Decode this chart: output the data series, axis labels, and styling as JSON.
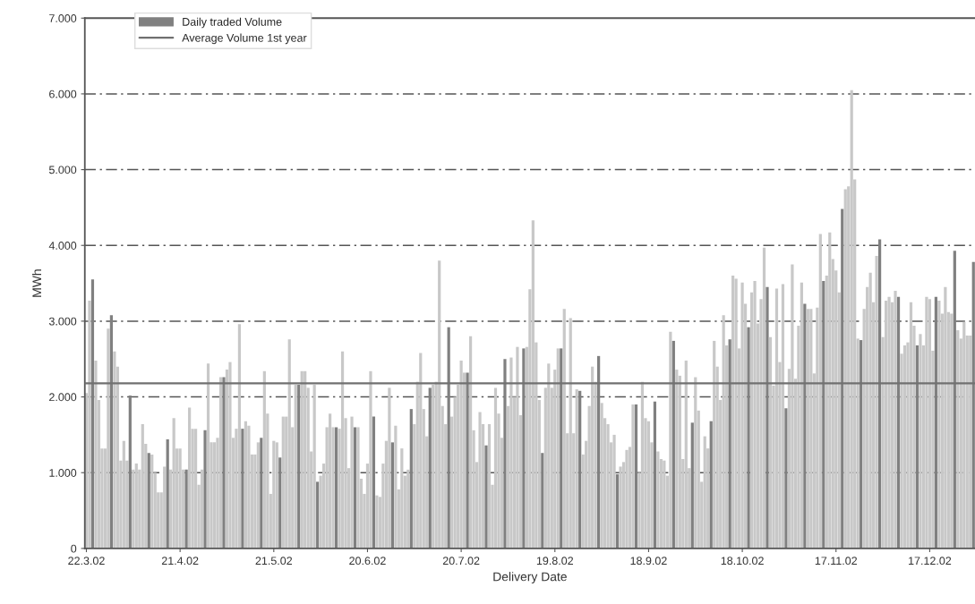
{
  "chart_data": {
    "type": "bar",
    "xlabel": "Delivery Date",
    "ylabel": "MWh",
    "categories": [
      "22.3.02",
      null,
      null,
      null,
      null,
      null,
      null,
      null,
      null,
      null,
      null,
      null,
      null,
      null,
      null,
      null,
      null,
      null,
      null,
      null,
      null,
      null,
      null,
      null,
      null,
      null,
      null,
      null,
      null,
      null,
      "21.4.02",
      null,
      null,
      null,
      null,
      null,
      null,
      null,
      null,
      null,
      null,
      null,
      null,
      null,
      null,
      null,
      null,
      null,
      null,
      null,
      null,
      null,
      null,
      null,
      null,
      null,
      null,
      null,
      null,
      null,
      "21.5.02",
      null,
      null,
      null,
      null,
      null,
      null,
      null,
      null,
      null,
      null,
      null,
      null,
      null,
      null,
      null,
      null,
      null,
      null,
      null,
      null,
      null,
      null,
      null,
      null,
      null,
      null,
      null,
      null,
      null,
      "20.6.02",
      null,
      null,
      null,
      null,
      null,
      null,
      null,
      null,
      null,
      null,
      null,
      null,
      null,
      null,
      null,
      null,
      null,
      null,
      null,
      null,
      null,
      null,
      null,
      null,
      null,
      null,
      null,
      null,
      null,
      "20.7.02",
      null,
      null,
      null,
      null,
      null,
      null,
      null,
      null,
      null,
      null,
      null,
      null,
      null,
      null,
      null,
      null,
      null,
      null,
      null,
      null,
      null,
      null,
      null,
      null,
      null,
      null,
      null,
      null,
      null,
      "19.8.02",
      null,
      null,
      null,
      null,
      null,
      null,
      null,
      null,
      null,
      null,
      null,
      null,
      null,
      null,
      null,
      null,
      null,
      null,
      null,
      null,
      null,
      null,
      null,
      null,
      null,
      null,
      null,
      null,
      null,
      "18.9.02",
      null,
      null,
      null,
      null,
      null,
      null,
      null,
      null,
      null,
      null,
      null,
      null,
      null,
      null,
      null,
      null,
      null,
      null,
      null,
      null,
      null,
      null,
      null,
      null,
      null,
      null,
      null,
      null,
      null,
      "18.10.02",
      null,
      null,
      null,
      null,
      null,
      null,
      null,
      null,
      null,
      null,
      null,
      null,
      null,
      null,
      null,
      null,
      null,
      null,
      null,
      null,
      null,
      null,
      null,
      null,
      null,
      null,
      null,
      null,
      null,
      "17.11.02",
      null,
      null,
      null,
      null,
      null,
      null,
      null,
      null,
      null,
      null,
      null,
      null,
      null,
      null,
      null,
      null,
      null,
      null,
      null,
      null,
      null,
      null,
      null,
      null,
      null,
      null,
      null,
      null,
      null,
      "17.12.02",
      null,
      null,
      null,
      null,
      null,
      null,
      null,
      null,
      null,
      null,
      null,
      null,
      null,
      null
    ],
    "series": [
      {
        "name": "Daily traded Volume",
        "color": "#808080",
        "colors": [
          "#c8c8c8",
          "#c8c8c8",
          "#808080",
          "#c8c8c8",
          "#c8c8c8",
          "#c8c8c8",
          "#c8c8c8",
          "#c8c8c8",
          "#808080",
          "#c8c8c8",
          "#c8c8c8",
          "#c8c8c8",
          "#c8c8c8",
          "#c8c8c8",
          "#808080",
          "#c8c8c8",
          "#c8c8c8",
          "#c8c8c8",
          "#c8c8c8",
          "#c8c8c8",
          "#808080",
          "#c8c8c8",
          "#c8c8c8",
          "#c8c8c8",
          "#c8c8c8",
          "#c8c8c8",
          "#808080",
          "#c8c8c8",
          "#c8c8c8",
          "#c8c8c8",
          "#c8c8c8",
          "#c8c8c8",
          "#808080",
          "#c8c8c8",
          "#c8c8c8",
          "#c8c8c8",
          "#c8c8c8",
          "#c8c8c8",
          "#808080",
          "#c8c8c8",
          "#c8c8c8",
          "#c8c8c8",
          "#c8c8c8",
          "#c8c8c8",
          "#808080",
          "#c8c8c8",
          "#c8c8c8",
          "#c8c8c8",
          "#c8c8c8",
          "#c8c8c8",
          "#808080",
          "#c8c8c8",
          "#c8c8c8",
          "#c8c8c8",
          "#c8c8c8",
          "#c8c8c8",
          "#808080",
          "#c8c8c8",
          "#c8c8c8",
          "#c8c8c8",
          "#c8c8c8",
          "#c8c8c8",
          "#808080",
          "#c8c8c8",
          "#c8c8c8",
          "#c8c8c8",
          "#c8c8c8",
          "#c8c8c8",
          "#808080",
          "#c8c8c8",
          "#c8c8c8",
          "#c8c8c8",
          "#c8c8c8",
          "#c8c8c8",
          "#808080",
          "#c8c8c8",
          "#c8c8c8",
          "#c8c8c8",
          "#c8c8c8",
          "#c8c8c8",
          "#808080",
          "#c8c8c8",
          "#c8c8c8",
          "#c8c8c8",
          "#c8c8c8",
          "#c8c8c8",
          "#808080",
          "#c8c8c8",
          "#c8c8c8",
          "#c8c8c8",
          "#c8c8c8",
          "#c8c8c8",
          "#808080",
          "#c8c8c8",
          "#c8c8c8",
          "#c8c8c8",
          "#c8c8c8",
          "#c8c8c8",
          "#808080",
          "#c8c8c8",
          "#c8c8c8",
          "#c8c8c8",
          "#c8c8c8",
          "#c8c8c8",
          "#808080",
          "#c8c8c8",
          "#c8c8c8",
          "#c8c8c8",
          "#c8c8c8",
          "#c8c8c8",
          "#808080",
          "#c8c8c8",
          "#c8c8c8",
          "#c8c8c8",
          "#c8c8c8",
          "#c8c8c8",
          "#808080",
          "#c8c8c8",
          "#c8c8c8",
          "#c8c8c8",
          "#c8c8c8",
          "#c8c8c8",
          "#808080",
          "#c8c8c8",
          "#c8c8c8",
          "#c8c8c8",
          "#c8c8c8",
          "#c8c8c8",
          "#808080",
          "#c8c8c8",
          "#c8c8c8",
          "#c8c8c8",
          "#c8c8c8",
          "#c8c8c8",
          "#808080",
          "#c8c8c8",
          "#c8c8c8",
          "#c8c8c8",
          "#c8c8c8",
          "#c8c8c8",
          "#808080",
          "#c8c8c8",
          "#c8c8c8",
          "#c8c8c8",
          "#c8c8c8",
          "#c8c8c8",
          "#808080",
          "#c8c8c8",
          "#c8c8c8",
          "#c8c8c8",
          "#c8c8c8",
          "#c8c8c8",
          "#808080",
          "#c8c8c8",
          "#c8c8c8",
          "#c8c8c8",
          "#c8c8c8",
          "#c8c8c8",
          "#808080",
          "#c8c8c8",
          "#c8c8c8",
          "#c8c8c8",
          "#c8c8c8",
          "#c8c8c8",
          "#808080",
          "#c8c8c8",
          "#c8c8c8",
          "#c8c8c8",
          "#c8c8c8",
          "#c8c8c8",
          "#808080",
          "#c8c8c8",
          "#c8c8c8",
          "#c8c8c8",
          "#c8c8c8",
          "#c8c8c8",
          "#808080",
          "#c8c8c8",
          "#c8c8c8",
          "#c8c8c8",
          "#c8c8c8",
          "#c8c8c8",
          "#808080",
          "#c8c8c8",
          "#c8c8c8",
          "#c8c8c8",
          "#c8c8c8",
          "#c8c8c8",
          "#808080",
          "#c8c8c8",
          "#c8c8c8",
          "#c8c8c8",
          "#c8c8c8",
          "#c8c8c8",
          "#808080",
          "#c8c8c8",
          "#c8c8c8",
          "#c8c8c8",
          "#c8c8c8",
          "#c8c8c8",
          "#808080",
          "#c8c8c8",
          "#c8c8c8",
          "#c8c8c8",
          "#c8c8c8",
          "#c8c8c8",
          "#808080",
          "#c8c8c8",
          "#c8c8c8",
          "#c8c8c8",
          "#c8c8c8",
          "#c8c8c8",
          "#808080",
          "#c8c8c8",
          "#c8c8c8",
          "#c8c8c8",
          "#c8c8c8",
          "#c8c8c8",
          "#808080",
          "#c8c8c8",
          "#c8c8c8",
          "#c8c8c8",
          "#c8c8c8",
          "#c8c8c8",
          "#808080",
          "#c8c8c8",
          "#c8c8c8",
          "#c8c8c8",
          "#c8c8c8",
          "#c8c8c8",
          "#808080",
          "#c8c8c8",
          "#c8c8c8",
          "#c8c8c8",
          "#c8c8c8",
          "#c8c8c8",
          "#808080",
          "#c8c8c8",
          "#c8c8c8",
          "#c8c8c8",
          "#c8c8c8",
          "#c8c8c8",
          "#808080",
          "#c8c8c8",
          "#c8c8c8",
          "#c8c8c8",
          "#c8c8c8",
          "#c8c8c8",
          "#808080",
          "#c8c8c8",
          "#c8c8c8",
          "#c8c8c8",
          "#c8c8c8",
          "#c8c8c8",
          "#808080",
          "#c8c8c8",
          "#c8c8c8",
          "#c8c8c8",
          "#c8c8c8",
          "#c8c8c8",
          "#808080",
          "#c8c8c8",
          "#c8c8c8",
          "#c8c8c8",
          "#c8c8c8",
          "#c8c8c8",
          "#808080",
          "#c8c8c8",
          "#c8c8c8",
          "#c8c8c8",
          "#c8c8c8",
          "#c8c8c8",
          "#808080",
          "#c8c8c8",
          "#c8c8c8",
          "#c8c8c8",
          "#c8c8c8",
          "#c8c8c8",
          "#808080",
          "#c8c8c8",
          "#c8c8c8",
          "#c8c8c8",
          "#c8c8c8",
          "#c8c8c8",
          "#808080"
        ],
        "values": [
          2050,
          3270,
          3550,
          2480,
          1960,
          1320,
          1320,
          2900,
          3080,
          2600,
          2400,
          1160,
          1420,
          1160,
          2020,
          1040,
          1120,
          1040,
          1640,
          1380,
          1260,
          1240,
          1000,
          740,
          740,
          1080,
          1440,
          1040,
          1720,
          1320,
          1320,
          1040,
          1040,
          1860,
          1580,
          1580,
          840,
          1040,
          1560,
          2440,
          1400,
          1400,
          1460,
          2260,
          2260,
          2360,
          2460,
          1460,
          1580,
          2960,
          1580,
          1680,
          1620,
          1240,
          1240,
          1400,
          1460,
          2340,
          1780,
          720,
          1420,
          1400,
          1200,
          1740,
          1740,
          2760,
          1600,
          2160,
          2160,
          2340,
          2340,
          2120,
          1280,
          2160,
          880,
          960,
          1120,
          1600,
          1780,
          1600,
          1600,
          1580,
          2600,
          1720,
          1060,
          1740,
          1600,
          1600,
          920,
          720,
          1120,
          2340,
          1740,
          700,
          680,
          1120,
          1420,
          2120,
          1400,
          1620,
          780,
          1320,
          960,
          1040,
          1840,
          1640,
          2200,
          2580,
          1840,
          1480,
          2120,
          2160,
          2200,
          3800,
          1880,
          1640,
          2920,
          1740,
          2000,
          2160,
          2480,
          2320,
          2320,
          2800,
          1560,
          1140,
          1800,
          1640,
          1360,
          1640,
          840,
          2120,
          1780,
          1460,
          2500,
          1880,
          2520,
          2000,
          2660,
          1760,
          2640,
          2660,
          3420,
          4330,
          2720,
          1960,
          1260,
          2120,
          2440,
          2120,
          2360,
          2640,
          2640,
          3160,
          1520,
          3040,
          1520,
          2100,
          2080,
          1240,
          1420,
          1880,
          2400,
          2200,
          2540,
          1920,
          1720,
          1640,
          1400,
          1500,
          980,
          1080,
          1140,
          1300,
          1340,
          1900,
          1900,
          1000,
          2200,
          1720,
          1680,
          1400,
          1940,
          1280,
          1180,
          1160,
          960,
          2860,
          2740,
          2360,
          2280,
          1180,
          2480,
          1060,
          1660,
          2260,
          1820,
          880,
          1480,
          1320,
          1680,
          2740,
          2400,
          1960,
          3080,
          2680,
          2760,
          3600,
          3560,
          2640,
          3510,
          3230,
          2920,
          3380,
          3530,
          2970,
          3290,
          3970,
          3450,
          2790,
          2150,
          3430,
          2460,
          3490,
          1850,
          2370,
          3750,
          2240,
          2940,
          3510,
          3230,
          3160,
          3160,
          2310,
          3180,
          4150,
          3530,
          3600,
          4170,
          3820,
          3670,
          3380,
          4480,
          4740,
          4780,
          6050,
          4870,
          2770,
          2750,
          3160,
          3450,
          3640,
          3250,
          3860,
          4080,
          2790,
          3270,
          3320,
          3250,
          3400,
          3320,
          2570,
          2680,
          2720,
          3250,
          2940,
          2680,
          2830,
          2680,
          3320,
          3290,
          2610,
          3320,
          3270,
          3100,
          3450,
          3120,
          3100,
          3930,
          2880,
          2770,
          2990,
          2810,
          2810,
          3780
        ]
      }
    ],
    "ylim": [
      0,
      7000
    ],
    "yticks": [
      {
        "value": 0,
        "label": "0"
      },
      {
        "value": 1000,
        "label": "1.000"
      },
      {
        "value": 2000,
        "label": "2.000"
      },
      {
        "value": 3000,
        "label": "3.000"
      },
      {
        "value": 4000,
        "label": "4.000"
      },
      {
        "value": 5000,
        "label": "5.000"
      },
      {
        "value": 6000,
        "label": "6.000"
      },
      {
        "value": 7000,
        "label": "7.000"
      }
    ],
    "grid": "y",
    "legend": "top left",
    "ref_lines": [
      {
        "axis": "y",
        "value": 2180,
        "label": "Average Volume 1st year",
        "color": "#707070",
        "line_style": "solid"
      }
    ]
  }
}
